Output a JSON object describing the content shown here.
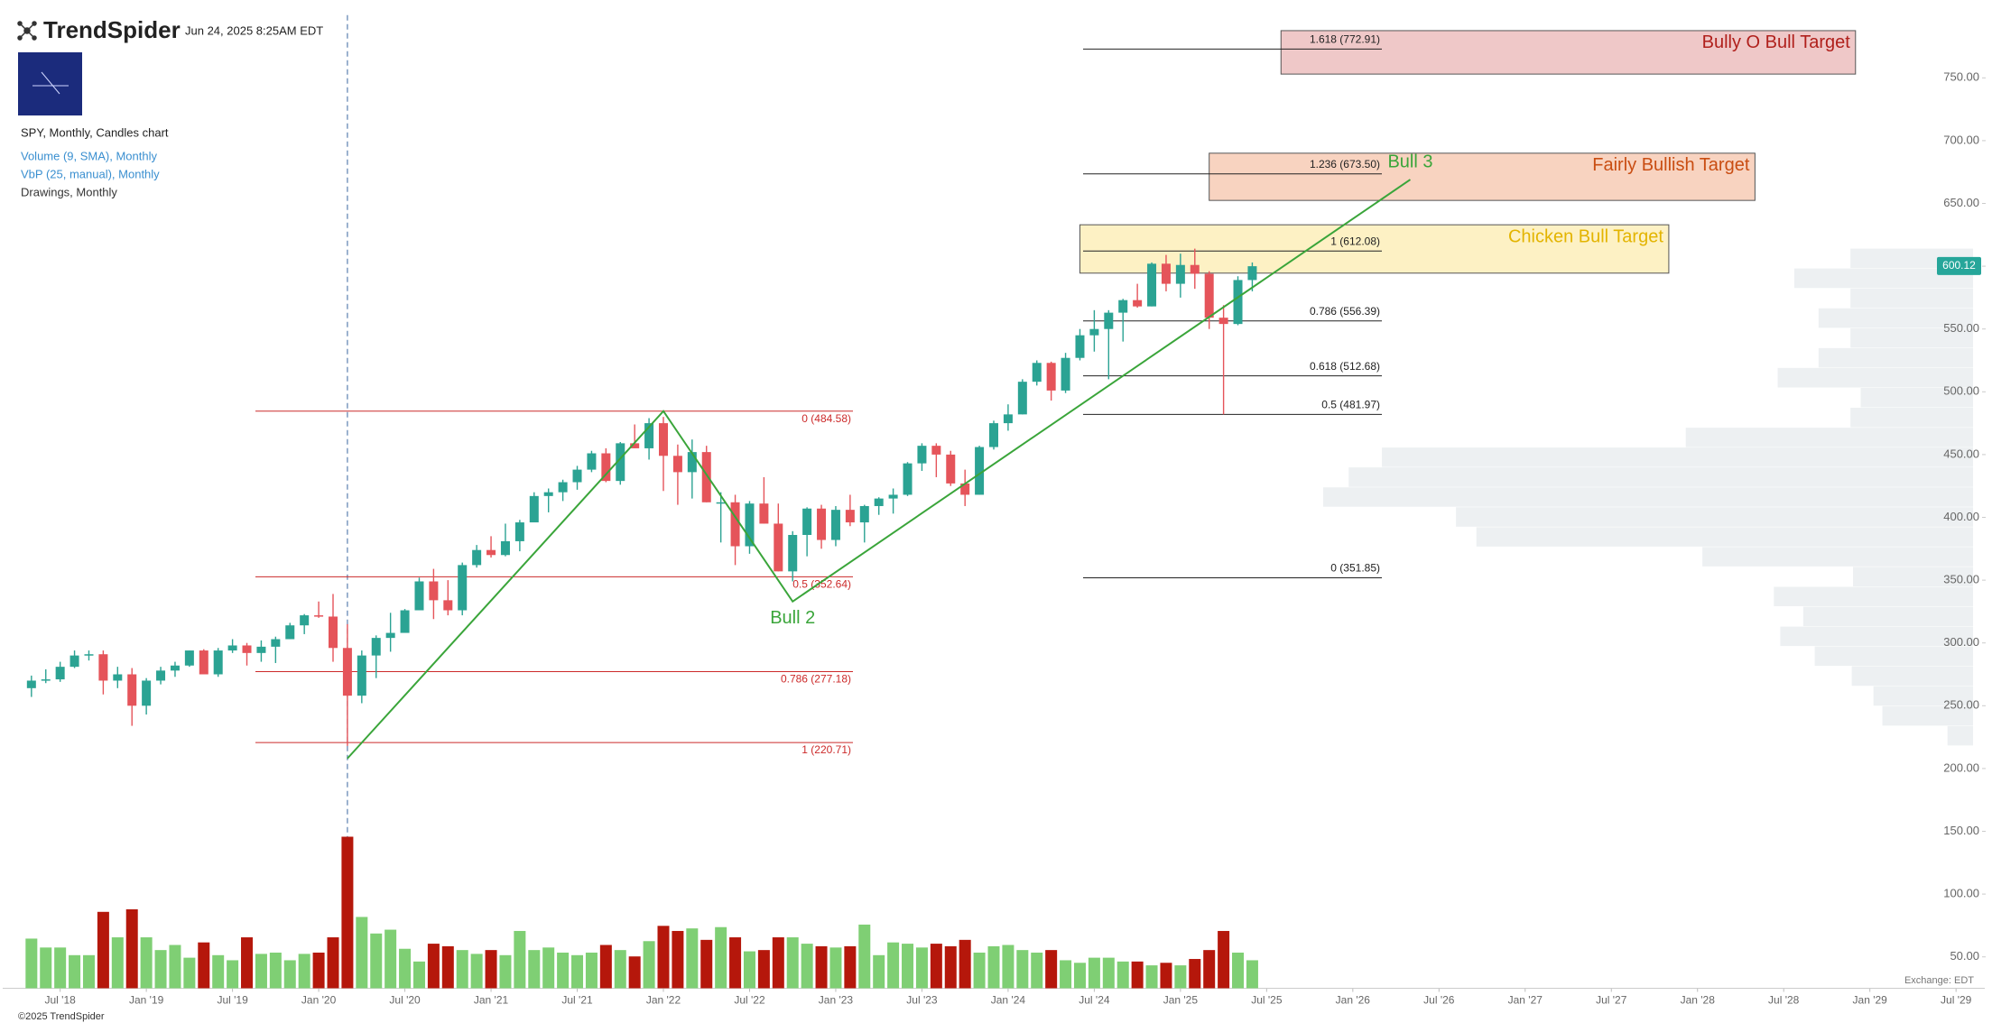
{
  "header": {
    "brand": "TrendSpider",
    "timestamp": "Jun 24, 2025 8:25AM EDT"
  },
  "legend": [
    "SPY, Monthly, Candles chart",
    "Volume (9, SMA), Monthly",
    "VbP (25, manual), Monthly",
    "Drawings, Monthly"
  ],
  "footer": {
    "copyright": "©2025 TrendSpider",
    "exchange": "Exchange: EDT"
  },
  "chart_data": {
    "type": "candlestick",
    "x": [
      "2018-05",
      "2018-06",
      "2018-07",
      "2018-08",
      "2018-09",
      "2018-10",
      "2018-11",
      "2018-12",
      "2019-01",
      "2019-02",
      "2019-03",
      "2019-04",
      "2019-05",
      "2019-06",
      "2019-07",
      "2019-08",
      "2019-09",
      "2019-10",
      "2019-11",
      "2019-12",
      "2020-01",
      "2020-02",
      "2020-03",
      "2020-04",
      "2020-05",
      "2020-06",
      "2020-07",
      "2020-08",
      "2020-09",
      "2020-10",
      "2020-11",
      "2020-12",
      "2021-01",
      "2021-02",
      "2021-03",
      "2021-04",
      "2021-05",
      "2021-06",
      "2021-07",
      "2021-08",
      "2021-09",
      "2021-10",
      "2021-11",
      "2021-12",
      "2022-01",
      "2022-02",
      "2022-03",
      "2022-04",
      "2022-05",
      "2022-06",
      "2022-07",
      "2022-08",
      "2022-09",
      "2022-10",
      "2022-11",
      "2022-12",
      "2023-01",
      "2023-02",
      "2023-03",
      "2023-04",
      "2023-05",
      "2023-06",
      "2023-07",
      "2023-08",
      "2023-09",
      "2023-10",
      "2023-11",
      "2023-12",
      "2024-01",
      "2024-02",
      "2024-03",
      "2024-04",
      "2024-05",
      "2024-06",
      "2024-07",
      "2024-08",
      "2024-09",
      "2024-10",
      "2024-11",
      "2024-12",
      "2025-01",
      "2025-02",
      "2025-03",
      "2025-04",
      "2025-05",
      "2025-06"
    ],
    "open": [
      264,
      270,
      271,
      281,
      290,
      291,
      270,
      275,
      250,
      270,
      278,
      282,
      294,
      275,
      294,
      298,
      292,
      297,
      303,
      314,
      322,
      321,
      296,
      258,
      290,
      304,
      308,
      326,
      349,
      334,
      326,
      362,
      374,
      370,
      381,
      396,
      417,
      420,
      428,
      438,
      451,
      429,
      459,
      455,
      475,
      449,
      436,
      452,
      412,
      412,
      377,
      411,
      395,
      357,
      386,
      407,
      382,
      406,
      396,
      409,
      415,
      418,
      443,
      457,
      450,
      427,
      418,
      456,
      475,
      482,
      508,
      523,
      501,
      527,
      545,
      550,
      563,
      573,
      568,
      602,
      586,
      601,
      594,
      559,
      554,
      589
    ],
    "high": [
      274,
      279,
      285,
      294,
      294,
      294,
      281,
      280,
      272,
      281,
      285,
      294,
      295,
      296,
      303,
      300,
      302,
      305,
      316,
      323,
      333,
      339,
      315,
      294,
      306,
      324,
      327,
      352,
      359,
      350,
      364,
      378,
      385,
      395,
      398,
      420,
      423,
      430,
      441,
      453,
      455,
      460,
      474,
      479,
      480,
      458,
      462,
      457,
      420,
      418,
      413,
      432,
      411,
      389,
      408,
      410,
      409,
      418,
      410,
      416,
      423,
      444,
      459,
      459,
      453,
      438,
      457,
      477,
      490,
      510,
      525,
      524,
      531,
      550,
      565,
      565,
      574,
      586,
      603,
      609,
      610,
      614,
      596,
      569,
      592,
      603
    ],
    "low": [
      257,
      268,
      269,
      280,
      286,
      259,
      264,
      234,
      243,
      267,
      273,
      281,
      275,
      273,
      292,
      282,
      285,
      284,
      303,
      307,
      320,
      285,
      218,
      252,
      272,
      293,
      309,
      326,
      319,
      322,
      322,
      360,
      368,
      369,
      373,
      398,
      404,
      413,
      422,
      436,
      428,
      426,
      455,
      446,
      421,
      410,
      415,
      412,
      380,
      362,
      371,
      395,
      357,
      349,
      369,
      375,
      377,
      393,
      380,
      402,
      403,
      417,
      437,
      432,
      425,
      409,
      418,
      454,
      469,
      482,
      505,
      493,
      499,
      525,
      532,
      510,
      540,
      567,
      568,
      580,
      575,
      582,
      550,
      482,
      553,
      580
    ],
    "close": [
      270,
      271,
      281,
      290,
      291,
      270,
      275,
      250,
      270,
      278,
      282,
      294,
      275,
      294,
      298,
      292,
      297,
      303,
      314,
      322,
      321,
      296,
      258,
      290,
      304,
      308,
      326,
      349,
      334,
      326,
      362,
      374,
      370,
      381,
      396,
      417,
      420,
      428,
      438,
      451,
      429,
      459,
      455,
      475,
      449,
      436,
      452,
      412,
      412,
      377,
      411,
      395,
      357,
      386,
      407,
      382,
      406,
      396,
      409,
      415,
      418,
      443,
      457,
      450,
      427,
      418,
      456,
      475,
      482,
      508,
      523,
      501,
      527,
      545,
      550,
      563,
      573,
      568,
      602,
      586,
      601,
      594,
      559,
      554,
      589,
      600
    ],
    "volume": [
      1443,
      1184,
      1184,
      962,
      962,
      2220,
      1480,
      2294,
      1480,
      1110,
      1258,
      888,
      1332,
      962,
      814,
      1480,
      999,
      1036,
      814,
      999,
      1036,
      1480,
      4403,
      2072,
      1591,
      1702,
      1147,
      777,
      1295,
      1221,
      1110,
      999,
      1110,
      962,
      1665,
      1110,
      1184,
      1036,
      962,
      1036,
      1258,
      1110,
      925,
      1369,
      1813,
      1665,
      1739,
      1406,
      1776,
      1480,
      1073,
      1110,
      1480,
      1480,
      1295,
      1221,
      1184,
      1221,
      1850,
      962,
      1332,
      1295,
      1184,
      1295,
      1221,
      1406,
      1036,
      1221,
      1258,
      1110,
      1036,
      1110,
      814,
      740,
      888,
      888,
      777,
      777,
      666,
      740,
      666,
      851,
      1110,
      1665,
      1036,
      814
    ],
    "up_color": "#2ba393",
    "down_color": "#e5545a",
    "volume_up_color": "#7fcf74",
    "volume_down_color": "#b5170b",
    "xlim": [
      "2018-03",
      "2029-09"
    ],
    "xticks": [
      {
        "value": "2018-07",
        "label": "Jul '18"
      },
      {
        "value": "2019-01",
        "label": "Jan '19"
      },
      {
        "value": "2019-07",
        "label": "Jul '19"
      },
      {
        "value": "2020-01",
        "label": "Jan '20"
      },
      {
        "value": "2020-07",
        "label": "Jul '20"
      },
      {
        "value": "2021-01",
        "label": "Jan '21"
      },
      {
        "value": "2021-07",
        "label": "Jul '21"
      },
      {
        "value": "2022-01",
        "label": "Jan '22"
      },
      {
        "value": "2022-07",
        "label": "Jul '22"
      },
      {
        "value": "2023-01",
        "label": "Jan '23"
      },
      {
        "value": "2023-07",
        "label": "Jul '23"
      },
      {
        "value": "2024-01",
        "label": "Jan '24"
      },
      {
        "value": "2024-07",
        "label": "Jul '24"
      },
      {
        "value": "2025-01",
        "label": "Jan '25"
      },
      {
        "value": "2025-07",
        "label": "Jul '25"
      },
      {
        "value": "2026-01",
        "label": "Jan '26"
      },
      {
        "value": "2026-07",
        "label": "Jul '26"
      },
      {
        "value": "2027-01",
        "label": "Jan '27"
      },
      {
        "value": "2027-07",
        "label": "Jul '27"
      },
      {
        "value": "2028-01",
        "label": "Jan '28"
      },
      {
        "value": "2028-07",
        "label": "Jul '28"
      },
      {
        "value": "2029-01",
        "label": "Jan '29"
      },
      {
        "value": "2029-07",
        "label": "Jul '29"
      }
    ],
    "ylim": [
      25,
      800
    ],
    "yticks": [
      {
        "value": 50,
        "label": "50.00"
      },
      {
        "value": 100,
        "label": "100.00"
      },
      {
        "value": 150,
        "label": "150.00"
      },
      {
        "value": 200,
        "label": "200.00"
      },
      {
        "value": 250,
        "label": "250.00"
      },
      {
        "value": 300,
        "label": "300.00"
      },
      {
        "value": 350,
        "label": "350.00"
      },
      {
        "value": 400,
        "label": "400.00"
      },
      {
        "value": 450,
        "label": "450.00"
      },
      {
        "value": 500,
        "label": "500.00"
      },
      {
        "value": 550,
        "label": "550.00"
      },
      {
        "value": 600,
        "label": "600.00"
      },
      {
        "value": 650,
        "label": "650.00"
      },
      {
        "value": 700,
        "label": "700.00"
      },
      {
        "value": 750,
        "label": "750.00"
      }
    ],
    "grid": false,
    "last_price": {
      "value": 600.12,
      "label": "600.12",
      "color": "#26a69a"
    },
    "event_line": {
      "x": "2020-03",
      "color": "#5a7fb0"
    },
    "fib_left": {
      "color": "#cc2a2a",
      "levels": [
        {
          "value": 484.58,
          "label": "0 (484.58)"
        },
        {
          "value": 352.64,
          "label": "0.5 (352.64)"
        },
        {
          "value": 277.18,
          "label": "0.786 (277.18)"
        },
        {
          "value": 220.71,
          "label": "1 (220.71)"
        }
      ]
    },
    "fib_right": {
      "color": "#222222",
      "levels": [
        {
          "value": 772.91,
          "label": "1.618 (772.91)"
        },
        {
          "value": 673.5,
          "label": "1.236 (673.50)"
        },
        {
          "value": 612.08,
          "label": "1 (612.08)"
        },
        {
          "value": 556.39,
          "label": "0.786 (556.39)"
        },
        {
          "value": 512.68,
          "label": "0.618 (512.68)"
        },
        {
          "value": 481.97,
          "label": "0.5 (481.97)"
        },
        {
          "value": 351.85,
          "label": "0 (351.85)"
        }
      ]
    },
    "zones": [
      {
        "label": "Bully O Bull Target",
        "top": 787.6,
        "bottom": 753,
        "x": [
          "2025-08",
          "2028-12"
        ],
        "fill": "#efc8c8",
        "text_color": "#b0201c"
      },
      {
        "label": "Fairly Bullish Target",
        "top": 690,
        "bottom": 652.4,
        "x": [
          "2025-03",
          "2028-05"
        ],
        "fill": "#f8d3c0",
        "text_color": "#c94d12"
      },
      {
        "label": "Chicken Bull Target",
        "top": 633,
        "bottom": 594.5,
        "x": [
          "2024-06",
          "2027-11"
        ],
        "fill": "#fdf1c4",
        "text_color": "#e3b400"
      }
    ],
    "zigzag": {
      "color": "#3aa53a",
      "points": [
        {
          "x": "2020-03",
          "y": 208
        },
        {
          "x": "2022-01",
          "y": 484.6
        },
        {
          "x": "2022-10",
          "y": 333,
          "label": "Bull 2"
        },
        {
          "x": "2026-05",
          "y": 669,
          "label": "Bull 3"
        }
      ]
    },
    "volume_profile": {
      "color": "#edf0f2",
      "bins": [
        218,
        233.8,
        249.7,
        265.5,
        281.4,
        297.2,
        313,
        328.9,
        344.7,
        360.6,
        376.4,
        392.2,
        408.1,
        423.9,
        439.8,
        455.6,
        471.4,
        487.3,
        503.1,
        519,
        534.8,
        550.6,
        566.5,
        582.3,
        598.2,
        614
      ],
      "values": [
        20,
        71,
        78,
        95,
        124,
        151,
        133,
        156,
        94,
        212,
        389,
        405,
        509,
        489,
        463,
        225,
        96,
        88,
        153,
        121,
        96,
        121,
        96,
        140,
        96
      ]
    }
  }
}
